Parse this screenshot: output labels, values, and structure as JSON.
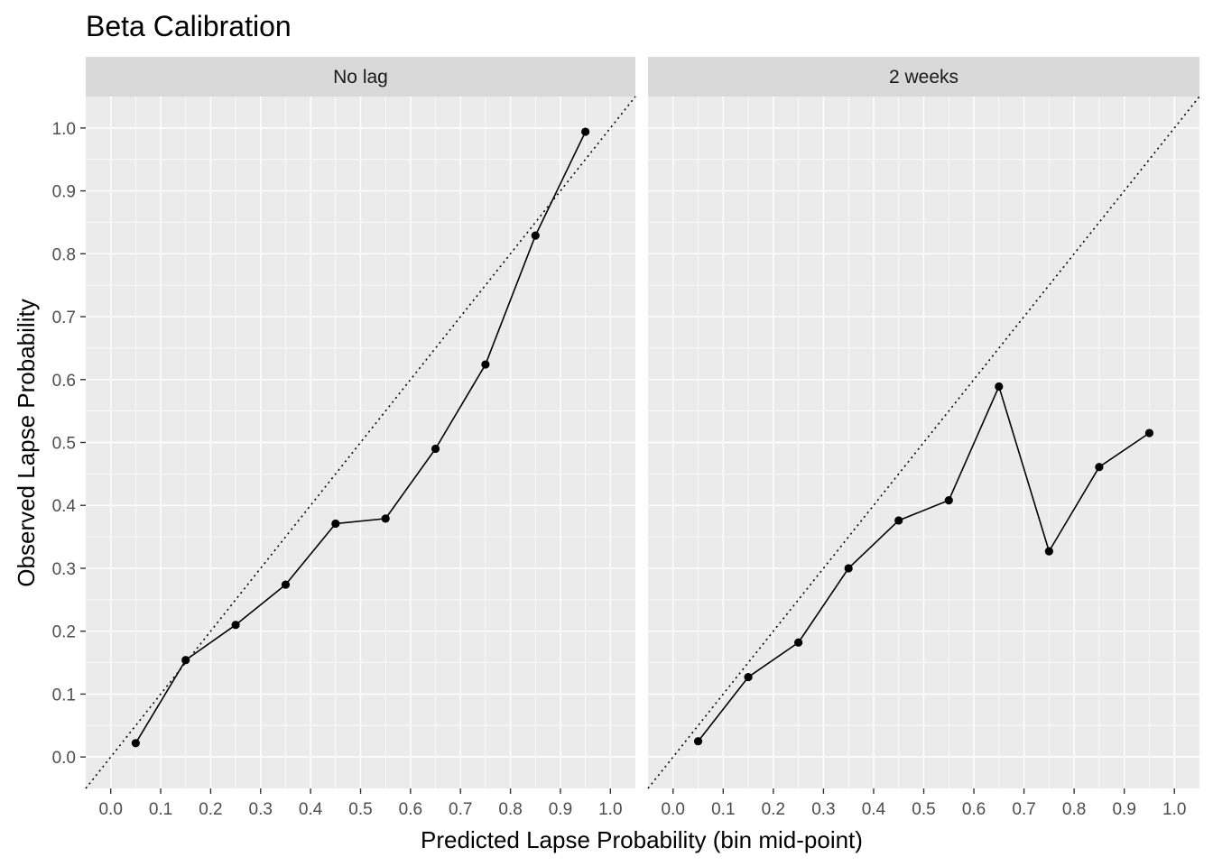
{
  "chart_data": {
    "type": "line",
    "title": "Beta Calibration",
    "xlabel": "Predicted Lapse Probability (bin mid-point)",
    "ylabel": "Observed Lapse Probability",
    "xlim": [
      -0.05,
      1.05
    ],
    "ylim": [
      -0.05,
      1.05
    ],
    "x_ticks": [
      "0.0",
      "0.1",
      "0.2",
      "0.3",
      "0.4",
      "0.5",
      "0.6",
      "0.7",
      "0.8",
      "0.9",
      "1.0"
    ],
    "y_ticks": [
      "0.0",
      "0.1",
      "0.2",
      "0.3",
      "0.4",
      "0.5",
      "0.6",
      "0.7",
      "0.8",
      "0.9",
      "1.0"
    ],
    "grid": true,
    "reference_line": "y = x (dotted)",
    "colors": {
      "panel_background": "#ebebeb",
      "strip_background": "#d9d9d9",
      "grid": "#ffffff",
      "series": "#000000"
    },
    "panels": [
      {
        "label": "No lag",
        "x": [
          0.05,
          0.15,
          0.25,
          0.35,
          0.45,
          0.55,
          0.65,
          0.75,
          0.85,
          0.95
        ],
        "y": [
          0.022,
          0.154,
          0.21,
          0.274,
          0.371,
          0.379,
          0.49,
          0.624,
          0.829,
          0.994
        ]
      },
      {
        "label": "2 weeks",
        "x": [
          0.05,
          0.15,
          0.25,
          0.35,
          0.45,
          0.55,
          0.65,
          0.75,
          0.85,
          0.95
        ],
        "y": [
          0.025,
          0.127,
          0.182,
          0.3,
          0.376,
          0.408,
          0.589,
          0.327,
          0.461,
          0.515
        ]
      }
    ]
  }
}
